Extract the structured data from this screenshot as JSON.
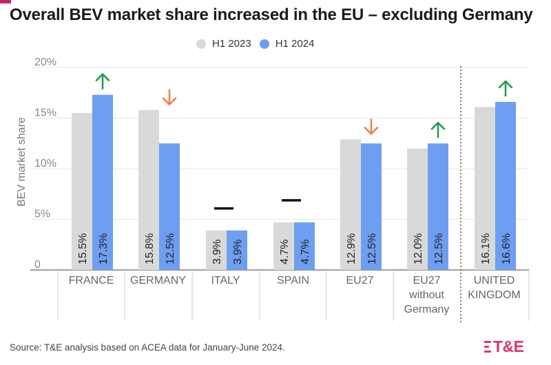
{
  "title": "Overall BEV market share increased in the EU – excluding Germany",
  "legend": [
    {
      "label": "H1 2023",
      "color": "#d9d9d9"
    },
    {
      "label": "H1 2024",
      "color": "#6d9ef0"
    }
  ],
  "source": "Source: T&E analysis based on ACEA data for January-June 2024.",
  "logo_text": "T&E",
  "chart_data": {
    "type": "bar",
    "ylabel": "BEV market share",
    "ylim": [
      0,
      20
    ],
    "yticks": [
      0,
      5,
      10,
      15,
      20
    ],
    "ytick_labels": [
      "0",
      "5%",
      "10%",
      "15%",
      "20%"
    ],
    "grid": true,
    "categories": [
      [
        "FRANCE"
      ],
      [
        "GERMANY"
      ],
      [
        "ITALY"
      ],
      [
        "SPAIN"
      ],
      [
        "EU27"
      ],
      [
        "EU27",
        "without",
        "Germany"
      ],
      [
        "UNITED",
        "KINGDOM"
      ]
    ],
    "series": [
      {
        "name": "H1 2023",
        "color": "#d9d9d9",
        "values": [
          15.5,
          15.8,
          3.9,
          4.7,
          12.9,
          12.0,
          16.1
        ],
        "labels": [
          "15.5%",
          "15.8%",
          "3.9%",
          "4.7%",
          "12.9%",
          "12.0%",
          "16.1%"
        ]
      },
      {
        "name": "H1 2024",
        "color": "#6d9ef0",
        "values": [
          17.3,
          12.5,
          3.9,
          4.7,
          12.5,
          12.5,
          16.6
        ],
        "labels": [
          "17.3%",
          "12.5%",
          "3.9%",
          "4.7%",
          "12.5%",
          "12.5%",
          "16.6%"
        ]
      }
    ],
    "trend": [
      "up",
      "down",
      "flat",
      "flat",
      "down",
      "up",
      "up"
    ],
    "trend_colors": {
      "up": "#1a9a4f",
      "down": "#f07d4a",
      "flat": "#111111"
    },
    "separator_before_index": 6
  }
}
